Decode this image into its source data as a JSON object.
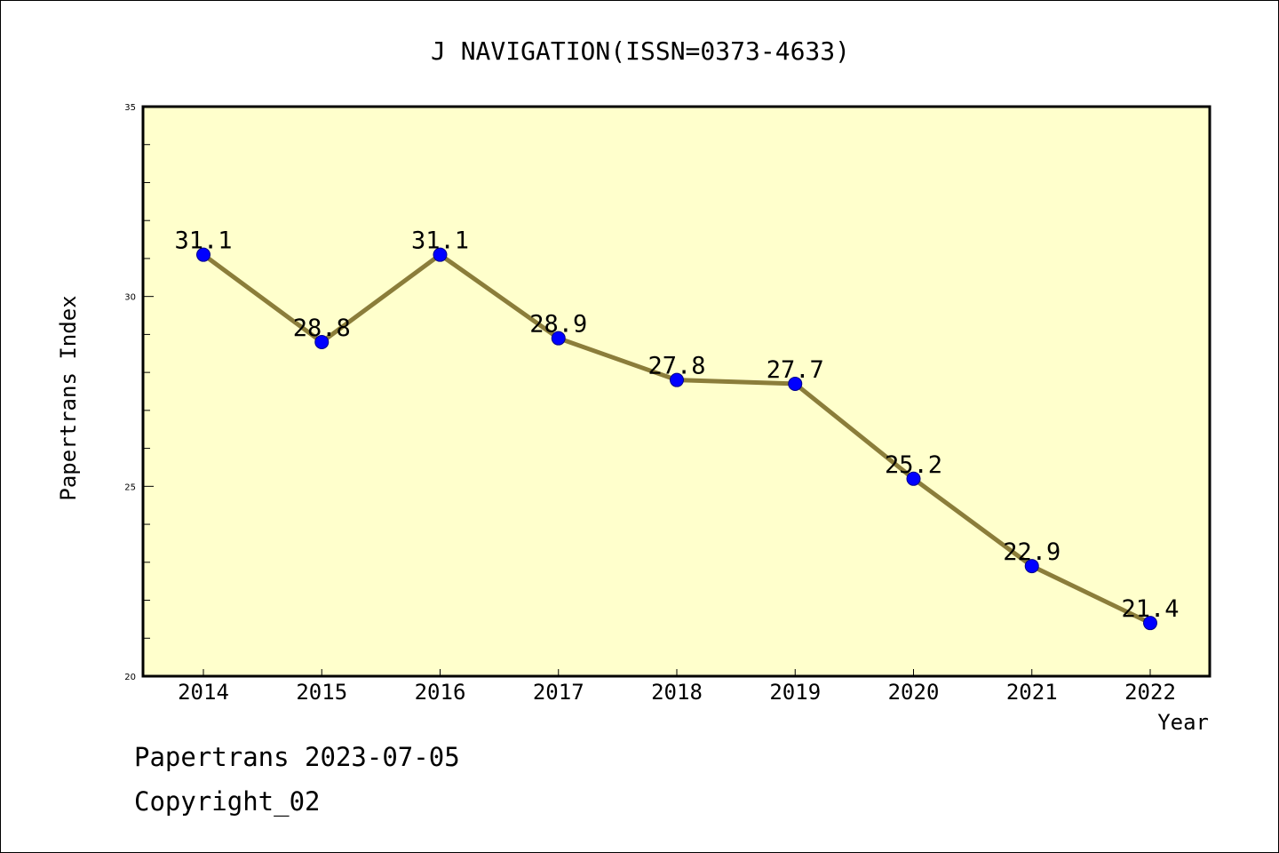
{
  "chart_data": {
    "type": "line",
    "title": "J NAVIGATION(ISSN=0373-4633)",
    "xlabel": "Year",
    "ylabel": "Papertrans Index",
    "categories": [
      "2014",
      "2015",
      "2016",
      "2017",
      "2018",
      "2019",
      "2020",
      "2021",
      "2022"
    ],
    "series": [
      {
        "values": [
          31.1,
          28.8,
          31.1,
          28.9,
          27.8,
          27.7,
          25.2,
          22.9,
          21.4
        ],
        "labels": [
          "31.1",
          "28.8",
          "31.1",
          "28.9",
          "27.8",
          "27.7",
          "25.2",
          "22.9",
          "21.4"
        ]
      }
    ],
    "ylim": [
      20,
      35
    ],
    "yticks": [
      "20",
      "25",
      "30",
      "35"
    ],
    "minor_tick_step": 1,
    "grid": false,
    "line_color": "#8b7d3a",
    "marker_color": "#0000ff",
    "plot_background": "#ffffcc"
  },
  "footer": {
    "line1": "Papertrans 2023-07-05",
    "line2": "Copyright_02"
  }
}
